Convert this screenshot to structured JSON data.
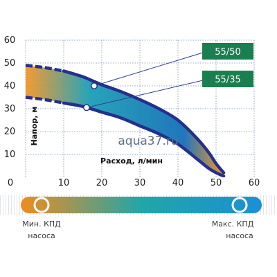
{
  "chart_data": {
    "type": "area",
    "x_ticks": [
      0,
      10,
      20,
      30,
      40,
      50,
      60
    ],
    "y_ticks": [
      10,
      20,
      30,
      40,
      50,
      60
    ],
    "xlim": [
      0,
      60
    ],
    "ylim": [
      0,
      60
    ],
    "xlabel": "Расход, л/мин",
    "ylabel": "Напор, м",
    "grid": true,
    "series": [
      {
        "name": "55/50",
        "x": [
          0,
          5,
          10,
          15,
          20,
          25,
          30,
          35,
          40,
          45,
          48,
          50,
          52
        ],
        "y": [
          49,
          48,
          46.5,
          44,
          40.5,
          37.5,
          34,
          30,
          25,
          17,
          11,
          6,
          2
        ]
      },
      {
        "name": "55/35",
        "x": [
          0,
          5,
          10,
          15,
          20,
          25,
          30,
          35,
          40,
          45,
          48,
          50,
          52
        ],
        "y": [
          35,
          34,
          32.5,
          31,
          28.5,
          26,
          22.5,
          19,
          14.5,
          8,
          4,
          2,
          0.5
        ]
      }
    ],
    "markers": [
      {
        "series": "55/50",
        "x": 18,
        "y": 40
      },
      {
        "series": "55/35",
        "x": 16,
        "y": 30.5
      }
    ],
    "watermark": "aqua37.ru",
    "efficiency_scale": {
      "left_label": [
        "Мин. КПД",
        "насоса"
      ],
      "right_label": [
        "Макс. КПД",
        "насоса"
      ],
      "left_color": "#f08c1e",
      "right_color": "#1b8fd6"
    },
    "colors": {
      "curve_border": "#252f8c",
      "fill_left": "#f2901c",
      "fill_mid": "#1c9fb5",
      "fill_right": "#156fb8",
      "label_box": "#1a7f4e",
      "grid": "#6e8fb5"
    }
  }
}
